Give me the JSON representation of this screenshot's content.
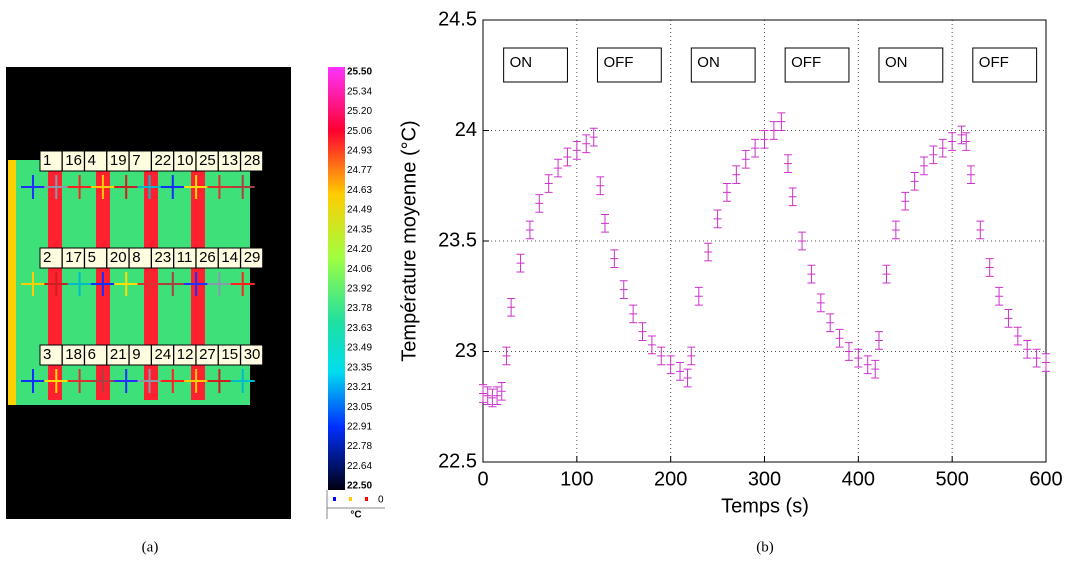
{
  "thermal_image": {
    "caption": "(a)",
    "unit": "°C",
    "legend_zero": "0",
    "colorbar_ticks": [
      "25.50",
      "25.34",
      "25.20",
      "25.06",
      "24.93",
      "24.77",
      "24.63",
      "24.49",
      "24.35",
      "24.20",
      "24.06",
      "23.92",
      "23.78",
      "23.63",
      "23.49",
      "23.35",
      "23.21",
      "23.05",
      "22.91",
      "22.78",
      "22.64",
      "22.50"
    ],
    "marker_rows": [
      [
        "1",
        "16",
        "4",
        "19",
        "7",
        "22",
        "10",
        "25",
        "13",
        "28"
      ],
      [
        "2",
        "17",
        "5",
        "20",
        "8",
        "23",
        "11",
        "26",
        "14",
        "29"
      ],
      [
        "3",
        "18",
        "6",
        "21",
        "9",
        "24",
        "12",
        "27",
        "15",
        "30"
      ]
    ]
  },
  "chart_data": {
    "type": "errorbar",
    "caption": "(b)",
    "xlabel": "Temps (s)",
    "ylabel": "Température moyenne (°C)",
    "annotations": [
      "ON",
      "OFF",
      "ON",
      "OFF",
      "ON",
      "OFF"
    ],
    "color": "#cc33cc",
    "error": 0.04,
    "x": [
      0,
      5,
      10,
      15,
      20,
      25,
      30,
      40,
      50,
      60,
      70,
      80,
      90,
      100,
      110,
      118,
      125,
      130,
      140,
      150,
      160,
      170,
      180,
      190,
      200,
      210,
      218,
      222,
      230,
      240,
      250,
      260,
      270,
      280,
      290,
      300,
      310,
      318,
      325,
      330,
      340,
      350,
      360,
      370,
      380,
      390,
      400,
      410,
      418,
      422,
      430,
      440,
      450,
      460,
      470,
      480,
      490,
      500,
      510,
      515,
      520,
      530,
      540,
      550,
      560,
      570,
      580,
      590,
      600
    ],
    "values": [
      22.81,
      22.8,
      22.79,
      22.8,
      22.82,
      22.98,
      23.2,
      23.4,
      23.55,
      23.67,
      23.76,
      23.83,
      23.88,
      23.91,
      23.94,
      23.97,
      23.75,
      23.58,
      23.42,
      23.28,
      23.17,
      23.09,
      23.03,
      22.98,
      22.94,
      22.91,
      22.88,
      22.98,
      23.25,
      23.45,
      23.6,
      23.72,
      23.8,
      23.87,
      23.92,
      23.96,
      24.0,
      24.04,
      23.85,
      23.7,
      23.5,
      23.35,
      23.22,
      23.13,
      23.06,
      23.0,
      22.97,
      22.94,
      22.92,
      23.05,
      23.35,
      23.55,
      23.68,
      23.77,
      23.84,
      23.89,
      23.92,
      23.95,
      23.98,
      23.95,
      23.8,
      23.55,
      23.38,
      23.25,
      23.15,
      23.07,
      23.01,
      22.97,
      22.95
    ],
    "xlim": [
      0,
      600
    ],
    "ylim": [
      22.5,
      24.5
    ],
    "xticks": [
      0,
      100,
      200,
      300,
      400,
      500,
      600
    ],
    "yticks": [
      22.5,
      23,
      23.5,
      24,
      24.5
    ],
    "grid": true
  }
}
